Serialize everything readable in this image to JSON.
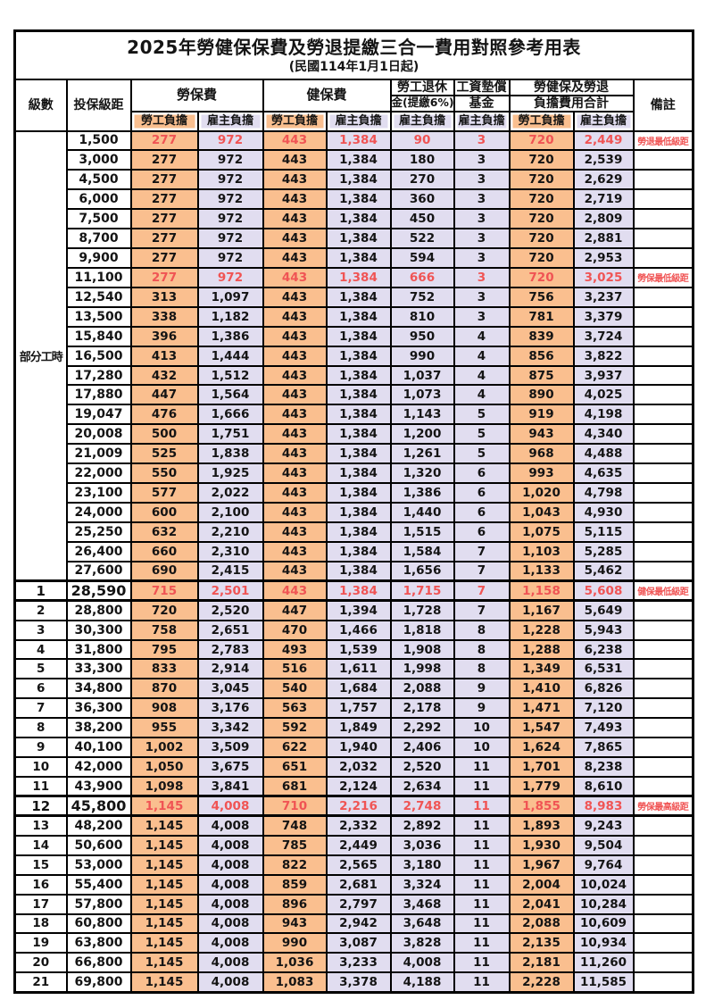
{
  "title": "2025年勞健保保費及勞退提繳三合一費用對照參考用表",
  "subtitle": "(民國114年1月1日起)",
  "colors": {
    "worker_bg": "#FABF8F",
    "employer_bg": "#E1DDF0",
    "highlight_red": "#F05454",
    "border": "#000000"
  },
  "header": {
    "level": "級數",
    "bracket": "投保級距",
    "labor_insurance": "勞保費",
    "health_insurance": "健保費",
    "pension_line1": "勞工退休",
    "pension_line2": "金(提繳6%)",
    "wage_fund_line1": "工資墊償",
    "wage_fund_line2": "基金",
    "total_line1": "勞健保及勞退",
    "total_line2": "負擔費用合計",
    "remark": "備註",
    "worker_label": "勞工負擔",
    "employer_label": "雇主負擔"
  },
  "part_time_label": "部分工時",
  "part_time_rowspan": 23,
  "rows": [
    {
      "level": "",
      "bracket": "1,500",
      "values": [
        "277",
        "972",
        "443",
        "1,384",
        "90",
        "3",
        "720",
        "2,449"
      ],
      "remark": "勞退最低級距",
      "red": true,
      "bold": false
    },
    {
      "level": "",
      "bracket": "3,000",
      "values": [
        "277",
        "972",
        "443",
        "1,384",
        "180",
        "3",
        "720",
        "2,539"
      ],
      "remark": "",
      "red": false,
      "bold": false
    },
    {
      "level": "",
      "bracket": "4,500",
      "values": [
        "277",
        "972",
        "443",
        "1,384",
        "270",
        "3",
        "720",
        "2,629"
      ],
      "remark": "",
      "red": false,
      "bold": false
    },
    {
      "level": "",
      "bracket": "6,000",
      "values": [
        "277",
        "972",
        "443",
        "1,384",
        "360",
        "3",
        "720",
        "2,719"
      ],
      "remark": "",
      "red": false,
      "bold": false
    },
    {
      "level": "",
      "bracket": "7,500",
      "values": [
        "277",
        "972",
        "443",
        "1,384",
        "450",
        "3",
        "720",
        "2,809"
      ],
      "remark": "",
      "red": false,
      "bold": false
    },
    {
      "level": "",
      "bracket": "8,700",
      "values": [
        "277",
        "972",
        "443",
        "1,384",
        "522",
        "3",
        "720",
        "2,881"
      ],
      "remark": "",
      "red": false,
      "bold": false
    },
    {
      "level": "",
      "bracket": "9,900",
      "values": [
        "277",
        "972",
        "443",
        "1,384",
        "594",
        "3",
        "720",
        "2,953"
      ],
      "remark": "",
      "red": false,
      "bold": false
    },
    {
      "level": "",
      "bracket": "11,100",
      "values": [
        "277",
        "972",
        "443",
        "1,384",
        "666",
        "3",
        "720",
        "3,025"
      ],
      "remark": "勞保最低級距",
      "red": true,
      "bold": false
    },
    {
      "level": "",
      "bracket": "12,540",
      "values": [
        "313",
        "1,097",
        "443",
        "1,384",
        "752",
        "3",
        "756",
        "3,237"
      ],
      "remark": "",
      "red": false,
      "bold": false
    },
    {
      "level": "",
      "bracket": "13,500",
      "values": [
        "338",
        "1,182",
        "443",
        "1,384",
        "810",
        "3",
        "781",
        "3,379"
      ],
      "remark": "",
      "red": false,
      "bold": false
    },
    {
      "level": "",
      "bracket": "15,840",
      "values": [
        "396",
        "1,386",
        "443",
        "1,384",
        "950",
        "4",
        "839",
        "3,724"
      ],
      "remark": "",
      "red": false,
      "bold": false
    },
    {
      "level": "",
      "bracket": "16,500",
      "values": [
        "413",
        "1,444",
        "443",
        "1,384",
        "990",
        "4",
        "856",
        "3,822"
      ],
      "remark": "",
      "red": false,
      "bold": false
    },
    {
      "level": "",
      "bracket": "17,280",
      "values": [
        "432",
        "1,512",
        "443",
        "1,384",
        "1,037",
        "4",
        "875",
        "3,937"
      ],
      "remark": "",
      "red": false,
      "bold": false
    },
    {
      "level": "",
      "bracket": "17,880",
      "values": [
        "447",
        "1,564",
        "443",
        "1,384",
        "1,073",
        "4",
        "890",
        "4,025"
      ],
      "remark": "",
      "red": false,
      "bold": false
    },
    {
      "level": "",
      "bracket": "19,047",
      "values": [
        "476",
        "1,666",
        "443",
        "1,384",
        "1,143",
        "5",
        "919",
        "4,198"
      ],
      "remark": "",
      "red": false,
      "bold": false
    },
    {
      "level": "",
      "bracket": "20,008",
      "values": [
        "500",
        "1,751",
        "443",
        "1,384",
        "1,200",
        "5",
        "943",
        "4,340"
      ],
      "remark": "",
      "red": false,
      "bold": false
    },
    {
      "level": "",
      "bracket": "21,009",
      "values": [
        "525",
        "1,838",
        "443",
        "1,384",
        "1,261",
        "5",
        "968",
        "4,488"
      ],
      "remark": "",
      "red": false,
      "bold": false
    },
    {
      "level": "",
      "bracket": "22,000",
      "values": [
        "550",
        "1,925",
        "443",
        "1,384",
        "1,320",
        "6",
        "993",
        "4,635"
      ],
      "remark": "",
      "red": false,
      "bold": false
    },
    {
      "level": "",
      "bracket": "23,100",
      "values": [
        "577",
        "2,022",
        "443",
        "1,384",
        "1,386",
        "6",
        "1,020",
        "4,798"
      ],
      "remark": "",
      "red": false,
      "bold": false
    },
    {
      "level": "",
      "bracket": "24,000",
      "values": [
        "600",
        "2,100",
        "443",
        "1,384",
        "1,440",
        "6",
        "1,043",
        "4,930"
      ],
      "remark": "",
      "red": false,
      "bold": false
    },
    {
      "level": "",
      "bracket": "25,250",
      "values": [
        "632",
        "2,210",
        "443",
        "1,384",
        "1,515",
        "6",
        "1,075",
        "5,115"
      ],
      "remark": "",
      "red": false,
      "bold": false
    },
    {
      "level": "",
      "bracket": "26,400",
      "values": [
        "660",
        "2,310",
        "443",
        "1,384",
        "1,584",
        "7",
        "1,103",
        "5,285"
      ],
      "remark": "",
      "red": false,
      "bold": false
    },
    {
      "level": "",
      "bracket": "27,600",
      "values": [
        "690",
        "2,415",
        "443",
        "1,384",
        "1,656",
        "7",
        "1,133",
        "5,462"
      ],
      "remark": "",
      "red": false,
      "bold": false
    },
    {
      "level": "1",
      "bracket": "28,590",
      "values": [
        "715",
        "2,501",
        "443",
        "1,384",
        "1,715",
        "7",
        "1,158",
        "5,608"
      ],
      "remark": "健保最低級距",
      "red": true,
      "bold": true
    },
    {
      "level": "2",
      "bracket": "28,800",
      "values": [
        "720",
        "2,520",
        "447",
        "1,394",
        "1,728",
        "7",
        "1,167",
        "5,649"
      ],
      "remark": "",
      "red": false,
      "bold": false
    },
    {
      "level": "3",
      "bracket": "30,300",
      "values": [
        "758",
        "2,651",
        "470",
        "1,466",
        "1,818",
        "8",
        "1,228",
        "5,943"
      ],
      "remark": "",
      "red": false,
      "bold": false
    },
    {
      "level": "4",
      "bracket": "31,800",
      "values": [
        "795",
        "2,783",
        "493",
        "1,539",
        "1,908",
        "8",
        "1,288",
        "6,238"
      ],
      "remark": "",
      "red": false,
      "bold": false
    },
    {
      "level": "5",
      "bracket": "33,300",
      "values": [
        "833",
        "2,914",
        "516",
        "1,611",
        "1,998",
        "8",
        "1,349",
        "6,531"
      ],
      "remark": "",
      "red": false,
      "bold": false
    },
    {
      "level": "6",
      "bracket": "34,800",
      "values": [
        "870",
        "3,045",
        "540",
        "1,684",
        "2,088",
        "9",
        "1,410",
        "6,826"
      ],
      "remark": "",
      "red": false,
      "bold": false
    },
    {
      "level": "7",
      "bracket": "36,300",
      "values": [
        "908",
        "3,176",
        "563",
        "1,757",
        "2,178",
        "9",
        "1,471",
        "7,120"
      ],
      "remark": "",
      "red": false,
      "bold": false
    },
    {
      "level": "8",
      "bracket": "38,200",
      "values": [
        "955",
        "3,342",
        "592",
        "1,849",
        "2,292",
        "10",
        "1,547",
        "7,493"
      ],
      "remark": "",
      "red": false,
      "bold": false
    },
    {
      "level": "9",
      "bracket": "40,100",
      "values": [
        "1,002",
        "3,509",
        "622",
        "1,940",
        "2,406",
        "10",
        "1,624",
        "7,865"
      ],
      "remark": "",
      "red": false,
      "bold": false
    },
    {
      "level": "10",
      "bracket": "42,000",
      "values": [
        "1,050",
        "3,675",
        "651",
        "2,032",
        "2,520",
        "11",
        "1,701",
        "8,238"
      ],
      "remark": "",
      "red": false,
      "bold": false
    },
    {
      "level": "11",
      "bracket": "43,900",
      "values": [
        "1,098",
        "3,841",
        "681",
        "2,124",
        "2,634",
        "11",
        "1,779",
        "8,610"
      ],
      "remark": "",
      "red": false,
      "bold": false
    },
    {
      "level": "12",
      "bracket": "45,800",
      "values": [
        "1,145",
        "4,008",
        "710",
        "2,216",
        "2,748",
        "11",
        "1,855",
        "8,983"
      ],
      "remark": "勞保最高級距",
      "red": true,
      "bold": true
    },
    {
      "level": "13",
      "bracket": "48,200",
      "values": [
        "1,145",
        "4,008",
        "748",
        "2,332",
        "2,892",
        "11",
        "1,893",
        "9,243"
      ],
      "remark": "",
      "red": false,
      "bold": false
    },
    {
      "level": "14",
      "bracket": "50,600",
      "values": [
        "1,145",
        "4,008",
        "785",
        "2,449",
        "3,036",
        "11",
        "1,930",
        "9,504"
      ],
      "remark": "",
      "red": false,
      "bold": false
    },
    {
      "level": "15",
      "bracket": "53,000",
      "values": [
        "1,145",
        "4,008",
        "822",
        "2,565",
        "3,180",
        "11",
        "1,967",
        "9,764"
      ],
      "remark": "",
      "red": false,
      "bold": false
    },
    {
      "level": "16",
      "bracket": "55,400",
      "values": [
        "1,145",
        "4,008",
        "859",
        "2,681",
        "3,324",
        "11",
        "2,004",
        "10,024"
      ],
      "remark": "",
      "red": false,
      "bold": false
    },
    {
      "level": "17",
      "bracket": "57,800",
      "values": [
        "1,145",
        "4,008",
        "896",
        "2,797",
        "3,468",
        "11",
        "2,041",
        "10,284"
      ],
      "remark": "",
      "red": false,
      "bold": false
    },
    {
      "level": "18",
      "bracket": "60,800",
      "values": [
        "1,145",
        "4,008",
        "943",
        "2,942",
        "3,648",
        "11",
        "2,088",
        "10,609"
      ],
      "remark": "",
      "red": false,
      "bold": false
    },
    {
      "level": "19",
      "bracket": "63,800",
      "values": [
        "1,145",
        "4,008",
        "990",
        "3,087",
        "3,828",
        "11",
        "2,135",
        "10,934"
      ],
      "remark": "",
      "red": false,
      "bold": false
    },
    {
      "level": "20",
      "bracket": "66,800",
      "values": [
        "1,145",
        "4,008",
        "1,036",
        "3,233",
        "4,008",
        "11",
        "2,181",
        "11,260"
      ],
      "remark": "",
      "red": false,
      "bold": false
    },
    {
      "level": "21",
      "bracket": "69,800",
      "values": [
        "1,145",
        "4,008",
        "1,083",
        "3,378",
        "4,188",
        "11",
        "2,228",
        "11,585"
      ],
      "remark": "",
      "red": false,
      "bold": false
    }
  ]
}
